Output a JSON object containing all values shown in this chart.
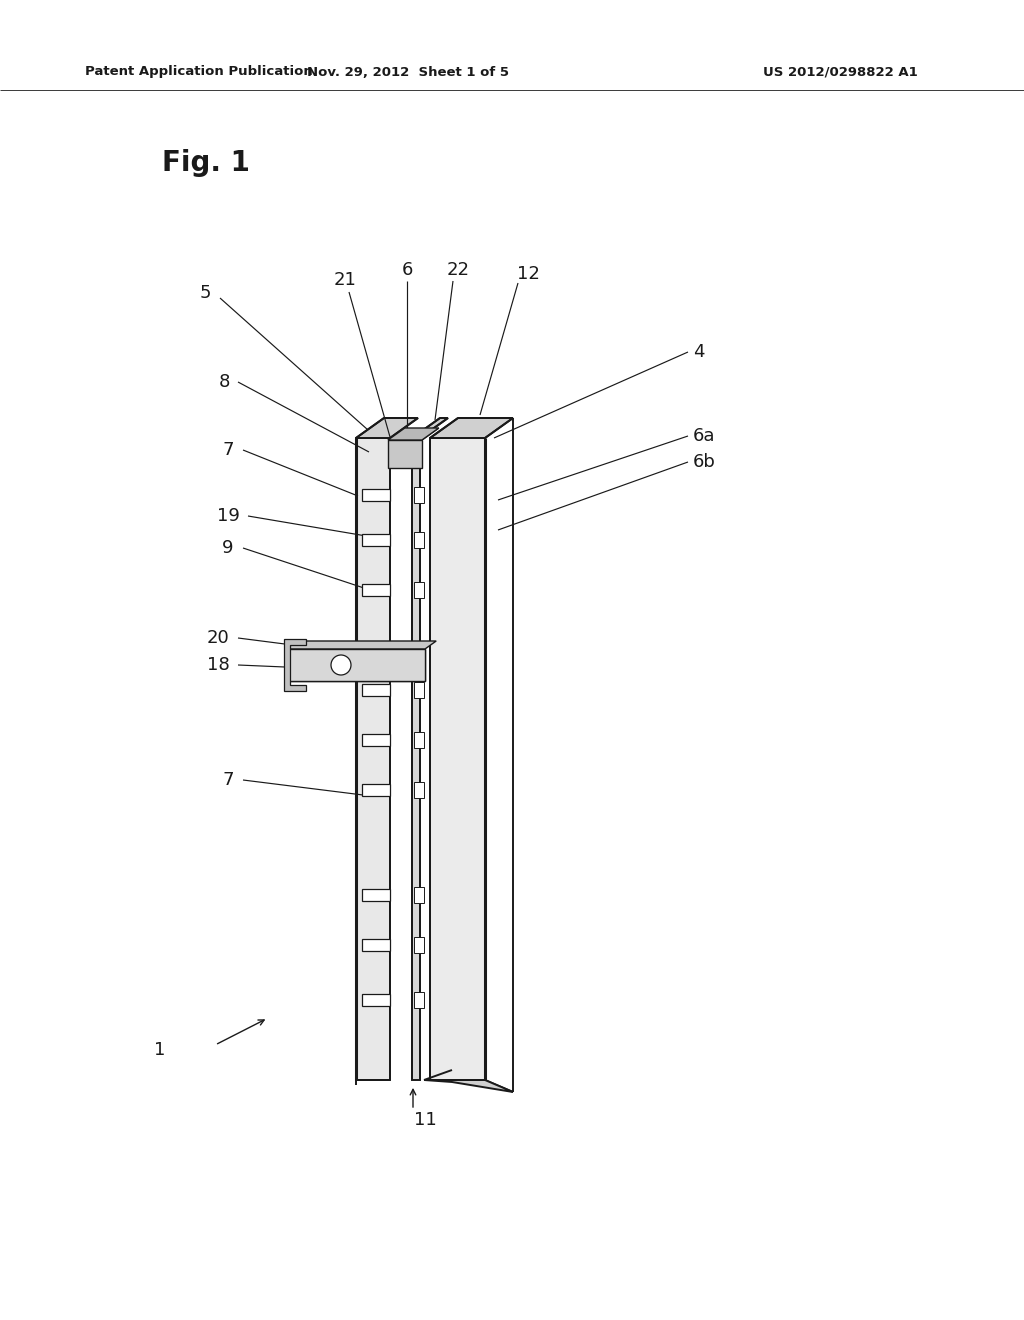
{
  "bg_color": "#ffffff",
  "header_text": "Patent Application Publication",
  "header_date": "Nov. 29, 2012  Sheet 1 of 5",
  "header_patent": "US 2012/0298822 A1",
  "fig_label": "Fig. 1",
  "line_color": "#1a1a1a",
  "lw": 1.4,
  "tlw": 2.2,
  "label_fs": 13
}
